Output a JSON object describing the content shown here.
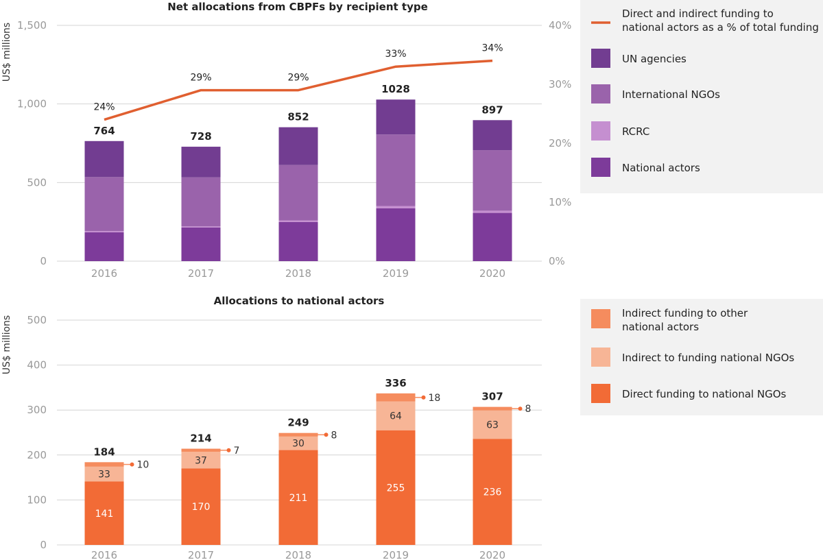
{
  "chart_data": [
    {
      "type": "bar",
      "stacked": true,
      "title": "Net allocations from CBPFs by recipient type",
      "ylabel": "US$ millions",
      "ylim": [
        0,
        1500
      ],
      "yticks": [
        "0",
        "500",
        "1,000",
        "1,500"
      ],
      "y2lim": [
        0,
        40
      ],
      "y2ticks": [
        "0%",
        "10%",
        "20%",
        "30%",
        "40%"
      ],
      "categories": [
        "2016",
        "2017",
        "2018",
        "2019",
        "2020"
      ],
      "totals": [
        "764",
        "728",
        "852",
        "1028",
        "897"
      ],
      "grid": true,
      "legend_position": "right",
      "series": [
        {
          "name": "National actors",
          "color": "#7d3b9a",
          "values": [
            184,
            214,
            249,
            336,
            307
          ]
        },
        {
          "name": "RCRC",
          "color": "#c58fd0",
          "values": [
            8,
            7,
            10,
            15,
            14
          ]
        },
        {
          "name": "International NGOs",
          "color": "#9a63ab",
          "values": [
            343,
            312,
            353,
            455,
            385
          ]
        },
        {
          "name": "UN agencies",
          "color": "#723d91",
          "values": [
            229,
            195,
            240,
            222,
            191
          ]
        }
      ],
      "line": {
        "name": "Direct and indirect funding to national actors as a % of total funding",
        "color": "#e05f30",
        "values": [
          24,
          29,
          29,
          33,
          34
        ],
        "labels": [
          "24%",
          "29%",
          "29%",
          "33%",
          "34%"
        ]
      },
      "legend": [
        {
          "label_lines": [
            "Direct and indirect funding to",
            "national actors as a % of total funding"
          ],
          "swatch": "line",
          "color": "#e05f30"
        },
        {
          "label_lines": [
            "UN agencies"
          ],
          "swatch": "box",
          "color": "#723d91"
        },
        {
          "label_lines": [
            "International NGOs"
          ],
          "swatch": "box",
          "color": "#9a63ab"
        },
        {
          "label_lines": [
            "RCRC"
          ],
          "swatch": "box",
          "color": "#c58fd0"
        },
        {
          "label_lines": [
            "National actors"
          ],
          "swatch": "box",
          "color": "#7d3b9a"
        }
      ]
    },
    {
      "type": "bar",
      "stacked": true,
      "title": "Allocations to national actors",
      "ylabel": "US$ millions",
      "ylim": [
        0,
        500
      ],
      "yticks": [
        "0",
        "100",
        "200",
        "300",
        "400",
        "500"
      ],
      "categories": [
        "2016",
        "2017",
        "2018",
        "2019",
        "2020"
      ],
      "totals": [
        "184",
        "214",
        "249",
        "336",
        "307"
      ],
      "grid": true,
      "legend_position": "right",
      "series": [
        {
          "name": "Direct funding to national NGOs",
          "color": "#f26b36",
          "values": [
            141,
            170,
            211,
            255,
            236
          ],
          "labels": [
            "141",
            "170",
            "211",
            "255",
            "236"
          ]
        },
        {
          "name": "Indirect to funding national NGOs",
          "color": "#f7b596",
          "values": [
            33,
            37,
            30,
            64,
            63
          ],
          "labels": [
            "33",
            "37",
            "30",
            "64",
            "63"
          ]
        },
        {
          "name": "Indirect funding to other national actors",
          "color": "#f58c5e",
          "values": [
            10,
            7,
            8,
            18,
            8
          ],
          "labels": [
            "10",
            "7",
            "8",
            "18",
            "8"
          ]
        }
      ],
      "legend": [
        {
          "label_lines": [
            "Indirect funding to other",
            "national actors"
          ],
          "swatch": "box",
          "color": "#f58c5e"
        },
        {
          "label_lines": [
            "Indirect to funding national NGOs"
          ],
          "swatch": "box",
          "color": "#f7b596"
        },
        {
          "label_lines": [
            "Direct funding to national NGOs"
          ],
          "swatch": "box",
          "color": "#f26b36"
        }
      ]
    }
  ]
}
